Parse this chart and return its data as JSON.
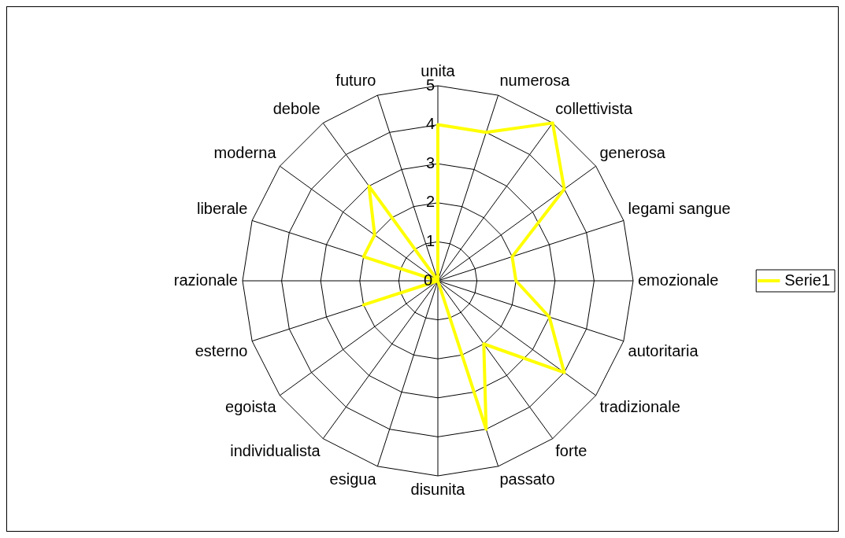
{
  "chart_data": {
    "type": "radar",
    "categories": [
      "unita",
      "numerosa",
      "collettivista",
      "generosa",
      "legami sangue",
      "emozionale",
      "autoritaria",
      "tradizionale",
      "forte",
      "passato",
      "disunita",
      "esigua",
      "individualista",
      "egoista",
      "esterno",
      "razionale",
      "liberale",
      "moderna",
      "debole",
      "futuro"
    ],
    "series": [
      {
        "name": "Serie1",
        "color": "#ffff00",
        "values": [
          4,
          4,
          5,
          4,
          2,
          2,
          3,
          4,
          2,
          4,
          0,
          0,
          0,
          0,
          2,
          0,
          2,
          2,
          3,
          0
        ]
      }
    ],
    "ylim": [
      0,
      5
    ],
    "yticks": [
      0,
      1,
      2,
      3,
      4,
      5
    ],
    "grid": true,
    "legend": "right",
    "marker": "none"
  }
}
